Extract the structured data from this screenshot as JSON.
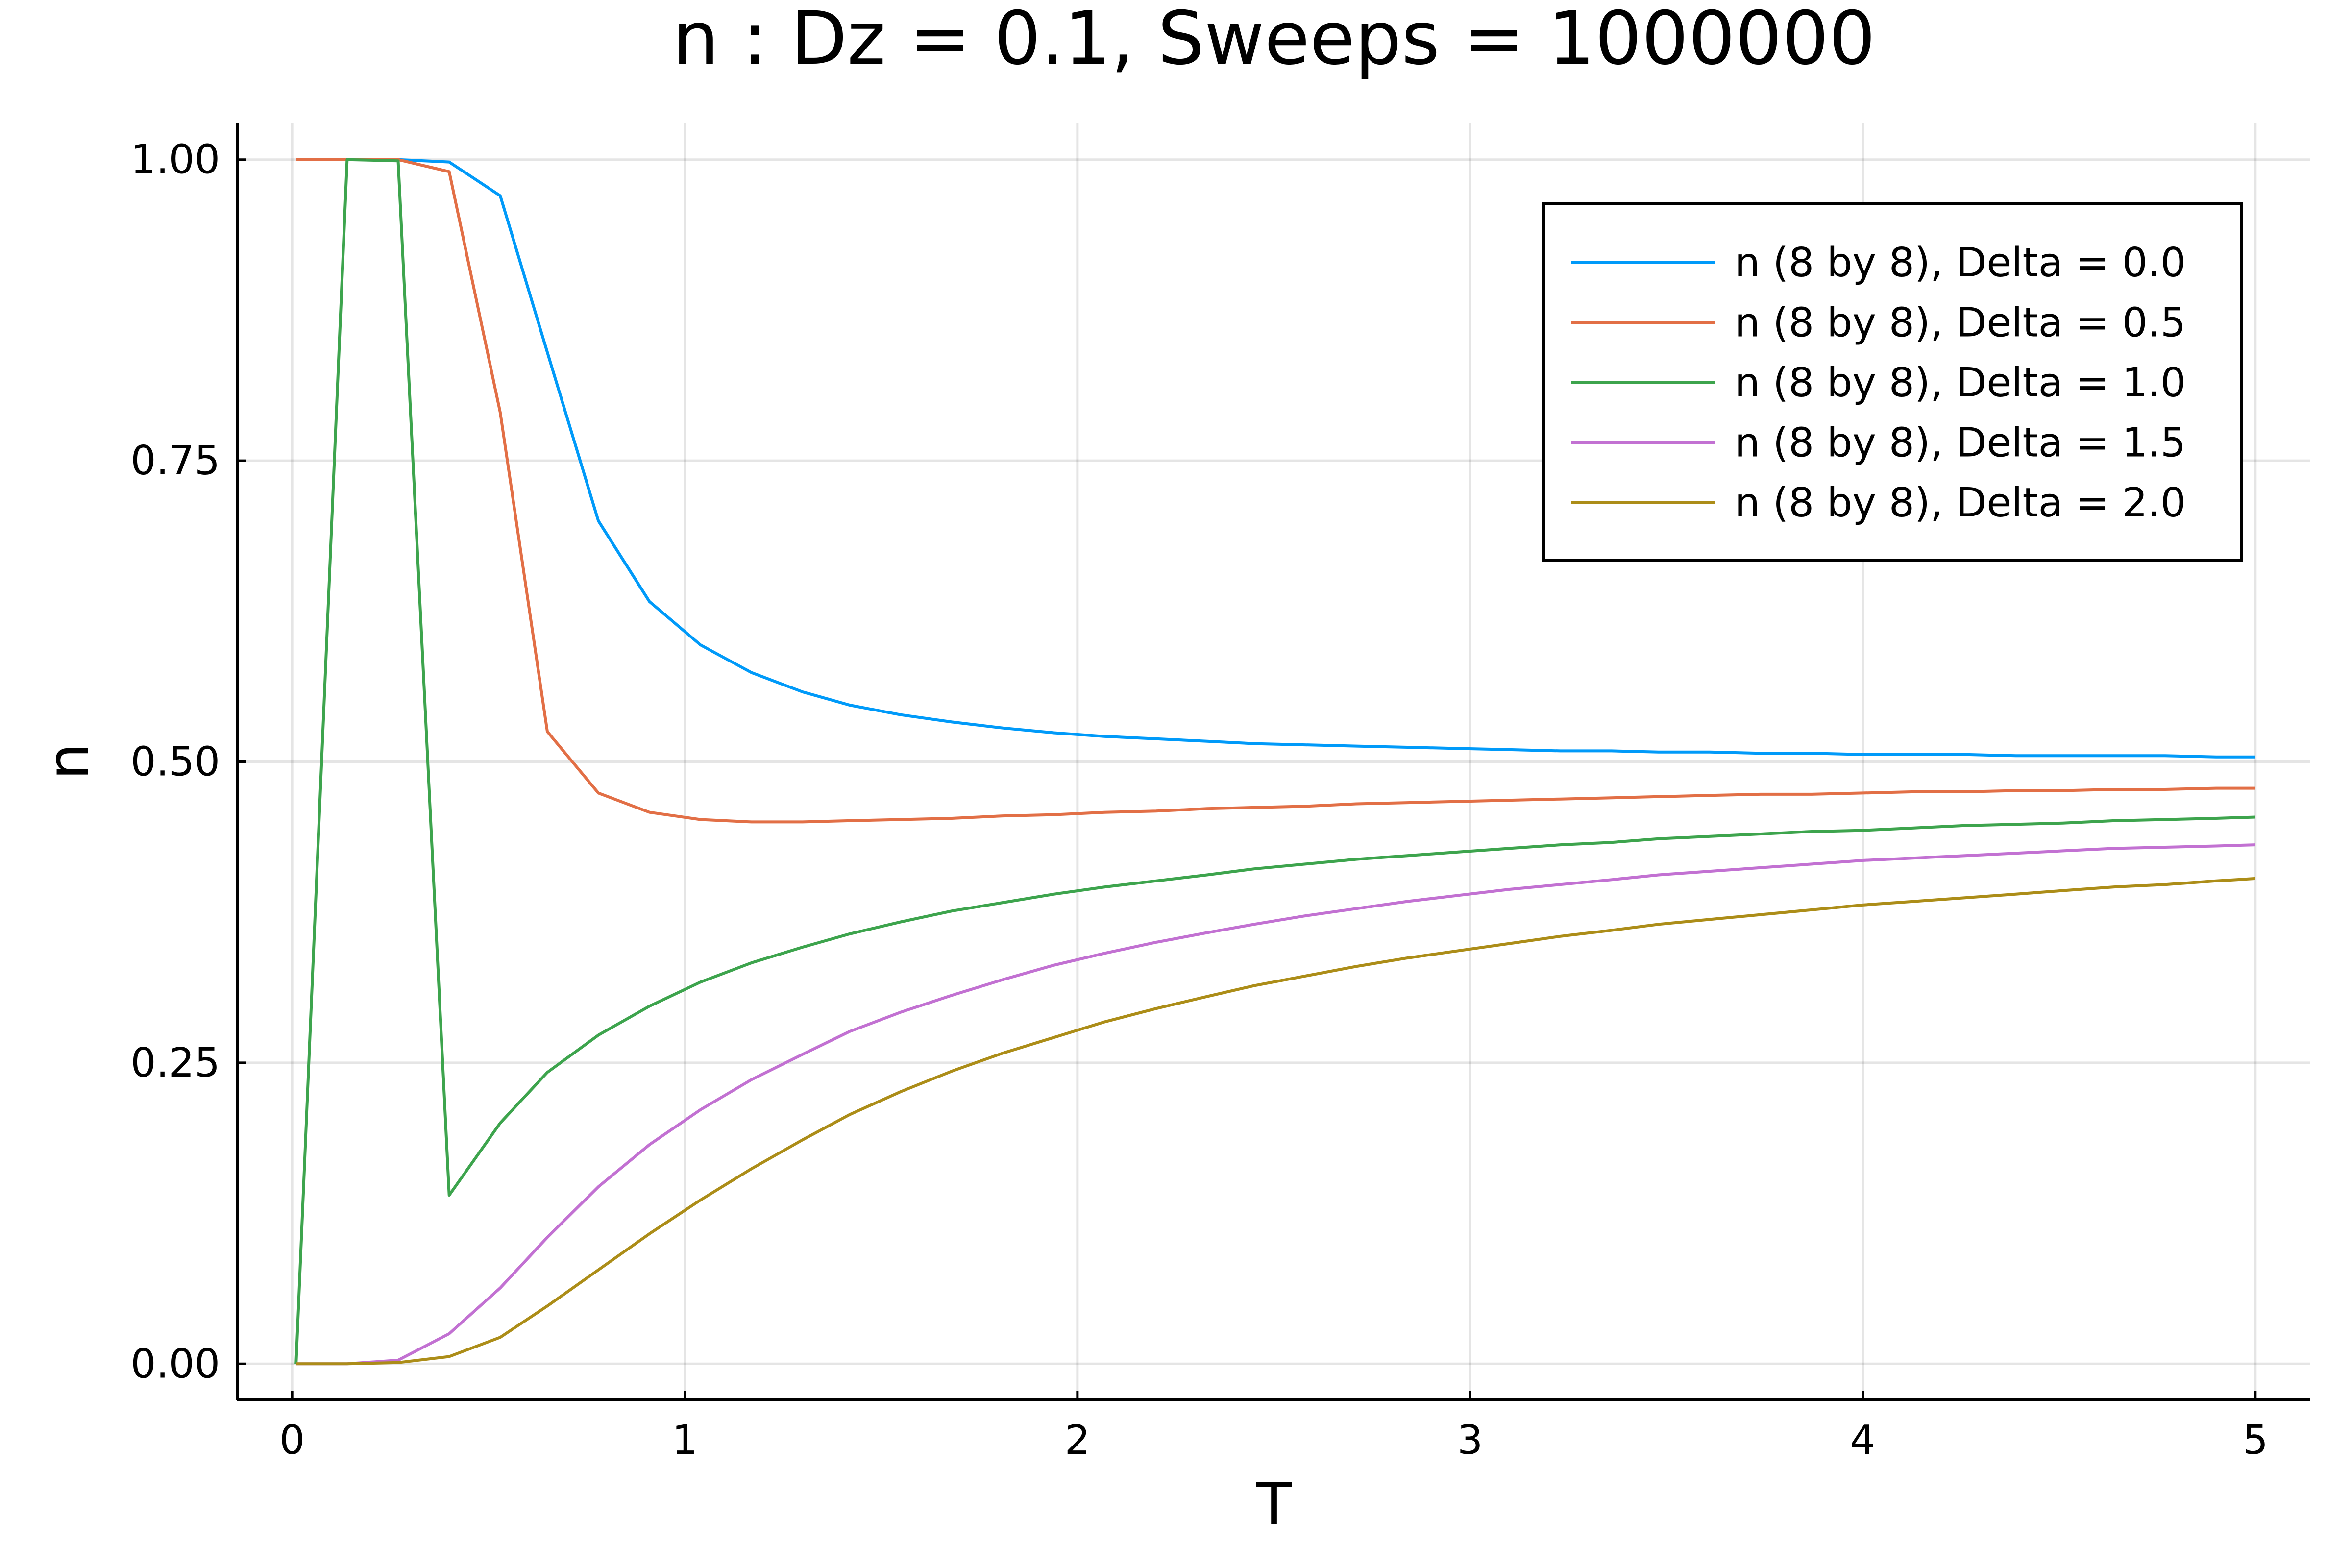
{
  "chart_data": {
    "type": "line",
    "title": "n : Dz = 0.1, Sweeps = 1000000",
    "xlabel": "T",
    "ylabel": "n",
    "xlim": [
      -0.14,
      5.14
    ],
    "ylim": [
      -0.03,
      1.03
    ],
    "xticks": [
      0,
      1,
      2,
      3,
      4,
      5
    ],
    "xtick_labels": [
      "0",
      "1",
      "2",
      "3",
      "4",
      "5"
    ],
    "yticks": [
      0,
      0.25,
      0.5,
      0.75,
      1.0
    ],
    "ytick_labels": [
      "0.00",
      "0.25",
      "0.50",
      "0.75",
      "1.00"
    ],
    "grid": true,
    "legend_position": "top-right",
    "x": [
      0.01,
      0.14,
      0.27,
      0.4,
      0.53,
      0.65,
      0.78,
      0.91,
      1.04,
      1.17,
      1.3,
      1.42,
      1.55,
      1.68,
      1.81,
      1.94,
      2.07,
      2.2,
      2.33,
      2.45,
      2.58,
      2.71,
      2.84,
      2.97,
      3.1,
      3.23,
      3.36,
      3.48,
      3.61,
      3.74,
      3.87,
      4.0,
      4.13,
      4.26,
      4.39,
      4.51,
      4.64,
      4.77,
      4.9,
      5.0
    ],
    "series": [
      {
        "name": "n (8 by 8), Delta = 0.0",
        "color": "#009af9",
        "values": [
          1.0,
          1.0,
          1.0,
          0.998,
          0.97,
          0.84,
          0.7,
          0.633,
          0.597,
          0.574,
          0.558,
          0.547,
          0.539,
          0.533,
          0.528,
          0.524,
          0.521,
          0.519,
          0.517,
          0.515,
          0.514,
          0.513,
          0.512,
          0.511,
          0.51,
          0.509,
          0.509,
          0.508,
          0.508,
          0.507,
          0.507,
          0.506,
          0.506,
          0.506,
          0.505,
          0.505,
          0.505,
          0.505,
          0.504,
          0.504
        ]
      },
      {
        "name": "n (8 by 8), Delta = 0.5",
        "color": "#e26f46",
        "values": [
          1.0,
          1.0,
          1.0,
          0.99,
          0.79,
          0.525,
          0.474,
          0.458,
          0.452,
          0.45,
          0.45,
          0.451,
          0.452,
          0.453,
          0.455,
          0.456,
          0.458,
          0.459,
          0.461,
          0.462,
          0.463,
          0.465,
          0.466,
          0.467,
          0.468,
          0.469,
          0.47,
          0.471,
          0.472,
          0.473,
          0.473,
          0.474,
          0.475,
          0.475,
          0.476,
          0.476,
          0.477,
          0.477,
          0.478,
          0.478
        ]
      },
      {
        "name": "n (8 by 8), Delta = 1.0",
        "color": "#3da44d",
        "values": [
          0.0,
          1.0,
          0.999,
          0.14,
          0.2,
          0.242,
          0.273,
          0.297,
          0.317,
          0.333,
          0.346,
          0.357,
          0.367,
          0.376,
          0.383,
          0.39,
          0.396,
          0.401,
          0.406,
          0.411,
          0.415,
          0.419,
          0.422,
          0.425,
          0.428,
          0.431,
          0.433,
          0.436,
          0.438,
          0.44,
          0.442,
          0.443,
          0.445,
          0.447,
          0.448,
          0.449,
          0.451,
          0.452,
          0.453,
          0.454
        ]
      },
      {
        "name": "n (8 by 8), Delta = 1.5",
        "color": "#c271d2",
        "values": [
          0.0,
          0.0,
          0.003,
          0.025,
          0.063,
          0.105,
          0.147,
          0.182,
          0.211,
          0.236,
          0.257,
          0.276,
          0.292,
          0.306,
          0.319,
          0.331,
          0.341,
          0.35,
          0.358,
          0.365,
          0.372,
          0.378,
          0.384,
          0.389,
          0.394,
          0.398,
          0.402,
          0.406,
          0.409,
          0.412,
          0.415,
          0.418,
          0.42,
          0.422,
          0.424,
          0.426,
          0.428,
          0.429,
          0.43,
          0.431
        ]
      },
      {
        "name": "n (8 by 8), Delta = 2.0",
        "color": "#ac8d18",
        "values": [
          0.0,
          0.0,
          0.001,
          0.006,
          0.022,
          0.048,
          0.078,
          0.108,
          0.136,
          0.162,
          0.186,
          0.207,
          0.226,
          0.243,
          0.258,
          0.271,
          0.284,
          0.295,
          0.305,
          0.314,
          0.322,
          0.33,
          0.337,
          0.343,
          0.349,
          0.355,
          0.36,
          0.365,
          0.369,
          0.373,
          0.377,
          0.381,
          0.384,
          0.387,
          0.39,
          0.393,
          0.396,
          0.398,
          0.401,
          0.403
        ]
      }
    ]
  }
}
